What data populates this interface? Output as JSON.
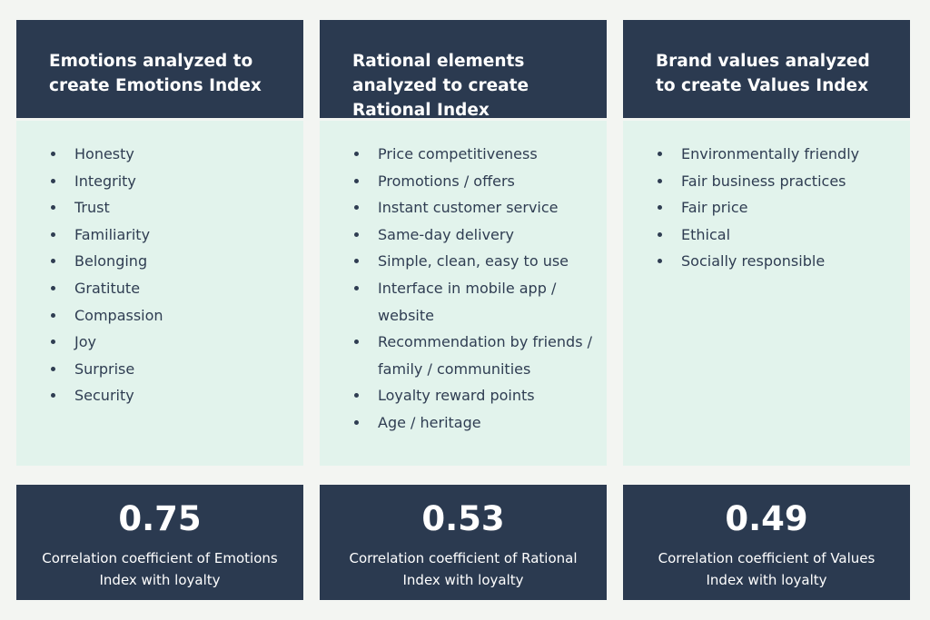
{
  "columns": [
    {
      "heading": "Emotions analyzed to create Emotions Index",
      "items": [
        "Honesty",
        "Integrity",
        "Trust",
        "Familiarity",
        "Belonging",
        "Gratitute",
        "Compassion",
        "Joy",
        "Surprise",
        "Security"
      ],
      "value": "0.75",
      "caption": "Correlation coefficient of Emotions Index with loyalty"
    },
    {
      "heading": "Rational elements analyzed to create Rational Index",
      "items": [
        "Price competitiveness",
        "Promotions / offers",
        "Instant customer service",
        "Same-day delivery",
        "Simple, clean, easy to use",
        "Interface in mobile app / website",
        "Recommendation by friends / family / communities",
        "Loyalty reward points",
        "Age / heritage"
      ],
      "value": "0.53",
      "caption": "Correlation coefficient of Rational Index with loyalty"
    },
    {
      "heading": "Brand values analyzed to create Values Index",
      "items": [
        "Environmentally friendly",
        "Fair business practices",
        "Fair price",
        "Ethical",
        "Socially responsible"
      ],
      "value": "0.49",
      "caption": "Correlation coefficient of Values Index with loyalty"
    }
  ]
}
